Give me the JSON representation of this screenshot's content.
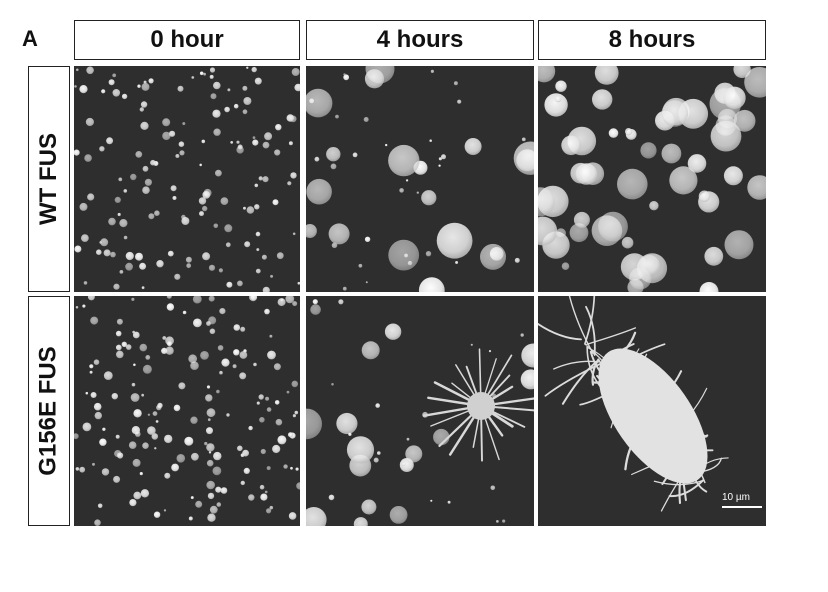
{
  "figure": {
    "panel_label": "A",
    "columns": [
      "0 hour",
      "4 hours",
      "8 hours"
    ],
    "rows": [
      "WT FUS",
      "G156E FUS"
    ],
    "scale_bar": "10 µm"
  },
  "images": [
    {
      "row": 0,
      "col": 0,
      "content": "many small bright droplets on dark background"
    },
    {
      "row": 0,
      "col": 1,
      "content": "larger round droplets of varied size"
    },
    {
      "row": 0,
      "col": 2,
      "content": "large fused droplets, dense"
    },
    {
      "row": 1,
      "col": 0,
      "content": "many small bright droplets on dark background"
    },
    {
      "row": 1,
      "col": 1,
      "content": "round droplets with one spiky fibrillar aggregate"
    },
    {
      "row": 1,
      "col": 2,
      "content": "large elongated aggregate with radiating fibers"
    }
  ],
  "colors": {
    "background": "#2e2e2e",
    "droplet": "#e8e8e8"
  }
}
